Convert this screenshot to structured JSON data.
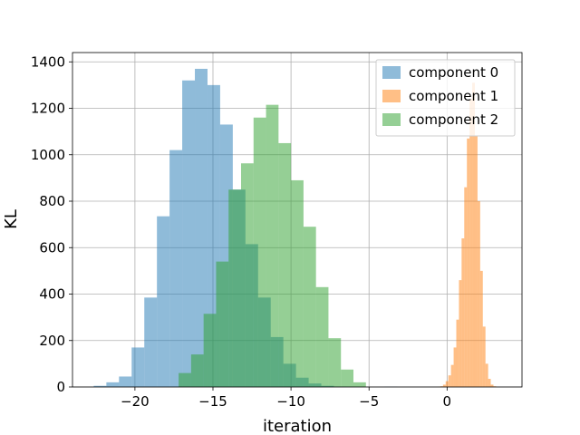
{
  "chart_data": {
    "type": "bar",
    "chart_kind": "histogram",
    "title": "",
    "xlabel": "iteration",
    "ylabel": "KL",
    "xlim": [
      -24,
      4.8
    ],
    "ylim": [
      0,
      1440
    ],
    "xticks": [
      -20,
      -15,
      -10,
      -5,
      0
    ],
    "xtick_labels": [
      "−20",
      "−15",
      "−10",
      "−5",
      "0"
    ],
    "yticks": [
      0,
      200,
      400,
      600,
      800,
      1000,
      1200,
      1400
    ],
    "ytick_labels": [
      "0",
      "200",
      "400",
      "600",
      "800",
      "1000",
      "1200",
      "1400"
    ],
    "grid": true,
    "legend_position": "top-right",
    "bar_alpha": 0.5,
    "series": [
      {
        "name": "component 0",
        "color": "#1f77b4",
        "bin_edges": [
          -22.64,
          -21.83,
          -21.02,
          -20.21,
          -19.4,
          -18.59,
          -17.78,
          -16.97,
          -16.16,
          -15.35,
          -14.54,
          -13.73,
          -12.92,
          -12.11,
          -11.3,
          -10.49,
          -9.68,
          -8.87,
          -8.06,
          -7.25,
          -6.44,
          -5.63,
          -4.82,
          -4.01,
          -3.2
        ],
        "counts": [
          5,
          20,
          45,
          170,
          385,
          735,
          1020,
          1320,
          1370,
          1300,
          1130,
          850,
          615,
          385,
          215,
          100,
          40,
          15,
          5,
          2,
          1,
          0,
          0,
          1
        ]
      },
      {
        "name": "component 1",
        "color": "#ff7f0e",
        "bin_edges": [
          -0.6,
          -0.43,
          -0.26,
          -0.09,
          0.08,
          0.25,
          0.42,
          0.59,
          0.76,
          0.93,
          1.1,
          1.27,
          1.44,
          1.61,
          1.78,
          1.95,
          2.12,
          2.29,
          2.46,
          2.63,
          2.8,
          2.97,
          3.14
        ],
        "counts": [
          1,
          3,
          10,
          25,
          50,
          95,
          170,
          290,
          460,
          640,
          860,
          1070,
          1240,
          1310,
          1080,
          800,
          500,
          260,
          100,
          35,
          10,
          3
        ]
      },
      {
        "name": "component 2",
        "color": "#2ca02c",
        "bin_edges": [
          -17.2,
          -16.4,
          -15.6,
          -14.8,
          -14.0,
          -13.2,
          -12.4,
          -11.6,
          -10.8,
          -10.0,
          -9.2,
          -8.4,
          -7.6,
          -6.8,
          -6.0,
          -5.2
        ],
        "counts": [
          60,
          140,
          315,
          540,
          850,
          963,
          1160,
          1215,
          1050,
          890,
          690,
          430,
          210,
          75,
          20
        ]
      }
    ]
  }
}
